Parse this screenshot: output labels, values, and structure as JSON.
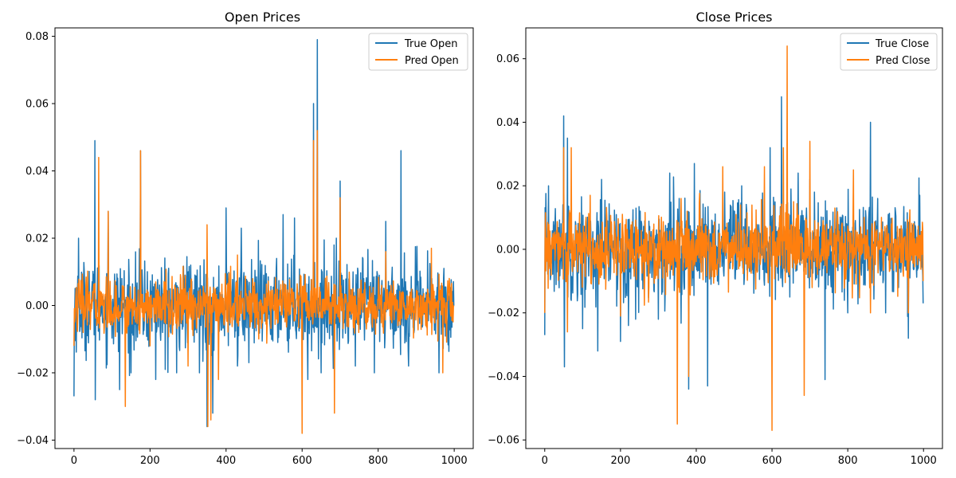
{
  "chart_data": [
    {
      "type": "line",
      "title": "Open Prices",
      "xlim": [
        -50,
        1050
      ],
      "ylim": [
        -0.0425,
        0.0825
      ],
      "xticks": [
        0,
        200,
        400,
        600,
        800,
        1000
      ],
      "xtick_labels": [
        "0",
        "200",
        "400",
        "600",
        "800",
        "1000"
      ],
      "yticks": [
        -0.04,
        -0.02,
        0.0,
        0.02,
        0.04,
        0.06,
        0.08
      ],
      "ytick_labels": [
        "−0.04",
        "−0.02",
        "0.00",
        "0.02",
        "0.04",
        "0.06",
        "0.08"
      ],
      "legend_position": "top-right",
      "n_points": 1000,
      "series": [
        {
          "name": "True Open",
          "color": "#1f77b4",
          "noise_std": 0.0065,
          "points": [
            [
              0,
              -0.027
            ],
            [
              12,
              0.02
            ],
            [
              30,
              -0.012
            ],
            [
              55,
              0.049
            ],
            [
              56,
              -0.028
            ],
            [
              90,
              0.028
            ],
            [
              120,
              -0.025
            ],
            [
              150,
              -0.02
            ],
            [
              175,
              0.046
            ],
            [
              215,
              -0.022
            ],
            [
              240,
              -0.019
            ],
            [
              270,
              -0.02
            ],
            [
              300,
              0.01
            ],
            [
              330,
              -0.02
            ],
            [
              350,
              -0.036
            ],
            [
              365,
              -0.032
            ],
            [
              400,
              0.029
            ],
            [
              430,
              -0.018
            ],
            [
              440,
              0.023
            ],
            [
              460,
              -0.017
            ],
            [
              550,
              0.027
            ],
            [
              580,
              0.026
            ],
            [
              615,
              -0.022
            ],
            [
              630,
              0.06
            ],
            [
              640,
              0.079
            ],
            [
              650,
              -0.02
            ],
            [
              690,
              0.02
            ],
            [
              700,
              0.037
            ],
            [
              740,
              -0.018
            ],
            [
              790,
              -0.02
            ],
            [
              820,
              0.025
            ],
            [
              860,
              0.046
            ],
            [
              880,
              -0.018
            ],
            [
              960,
              -0.02
            ],
            [
              1000,
              0.0
            ]
          ]
        },
        {
          "name": "Pred Open",
          "color": "#ff7f0e",
          "noise_std": 0.004,
          "points": [
            [
              0,
              -0.012
            ],
            [
              65,
              0.044
            ],
            [
              90,
              0.028
            ],
            [
              135,
              -0.03
            ],
            [
              175,
              0.046
            ],
            [
              200,
              -0.012
            ],
            [
              300,
              -0.018
            ],
            [
              350,
              0.024
            ],
            [
              352,
              -0.036
            ],
            [
              360,
              -0.034
            ],
            [
              380,
              -0.022
            ],
            [
              430,
              0.015
            ],
            [
              600,
              -0.038
            ],
            [
              630,
              0.049
            ],
            [
              640,
              0.052
            ],
            [
              685,
              -0.032
            ],
            [
              700,
              0.032
            ],
            [
              820,
              0.016
            ],
            [
              940,
              0.017
            ],
            [
              970,
              -0.02
            ],
            [
              1000,
              0.0
            ]
          ]
        }
      ]
    },
    {
      "type": "line",
      "title": "Close Prices",
      "xlim": [
        -50,
        1050
      ],
      "ylim": [
        -0.0627,
        0.0697
      ],
      "xticks": [
        0,
        200,
        400,
        600,
        800,
        1000
      ],
      "xtick_labels": [
        "0",
        "200",
        "400",
        "600",
        "800",
        "1000"
      ],
      "yticks": [
        -0.06,
        -0.04,
        -0.02,
        0.0,
        0.02,
        0.04,
        0.06
      ],
      "ytick_labels": [
        "−0.06",
        "−0.04",
        "−0.02",
        "0.00",
        "0.02",
        "0.04",
        "0.06"
      ],
      "legend_position": "top-right",
      "n_points": 1000,
      "series": [
        {
          "name": "True Close",
          "color": "#1f77b4",
          "noise_std": 0.0075,
          "points": [
            [
              0,
              -0.027
            ],
            [
              10,
              0.02
            ],
            [
              50,
              0.042
            ],
            [
              52,
              -0.037
            ],
            [
              60,
              0.035
            ],
            [
              100,
              -0.025
            ],
            [
              140,
              -0.032
            ],
            [
              150,
              0.022
            ],
            [
              200,
              -0.029
            ],
            [
              240,
              -0.022
            ],
            [
              300,
              -0.022
            ],
            [
              330,
              0.024
            ],
            [
              355,
              0.016
            ],
            [
              380,
              -0.044
            ],
            [
              395,
              0.027
            ],
            [
              430,
              -0.043
            ],
            [
              475,
              0.018
            ],
            [
              520,
              0.02
            ],
            [
              595,
              0.032
            ],
            [
              625,
              0.048
            ],
            [
              650,
              0.019
            ],
            [
              700,
              0.022
            ],
            [
              740,
              -0.041
            ],
            [
              800,
              -0.02
            ],
            [
              860,
              0.04
            ],
            [
              900,
              -0.02
            ],
            [
              960,
              -0.028
            ],
            [
              990,
              0.017
            ],
            [
              1000,
              -0.017
            ]
          ]
        },
        {
          "name": "Pred Close",
          "color": "#ff7f0e",
          "noise_std": 0.0055,
          "points": [
            [
              0,
              -0.02
            ],
            [
              50,
              0.032
            ],
            [
              60,
              -0.026
            ],
            [
              70,
              0.032
            ],
            [
              120,
              0.017
            ],
            [
              200,
              -0.021
            ],
            [
              350,
              -0.055
            ],
            [
              360,
              0.016
            ],
            [
              380,
              -0.04
            ],
            [
              470,
              0.026
            ],
            [
              580,
              0.026
            ],
            [
              600,
              -0.057
            ],
            [
              630,
              0.032
            ],
            [
              640,
              0.064
            ],
            [
              685,
              -0.046
            ],
            [
              700,
              0.034
            ],
            [
              815,
              0.025
            ],
            [
              860,
              -0.02
            ],
            [
              960,
              -0.02
            ],
            [
              1000,
              -0.01
            ]
          ]
        }
      ]
    }
  ]
}
